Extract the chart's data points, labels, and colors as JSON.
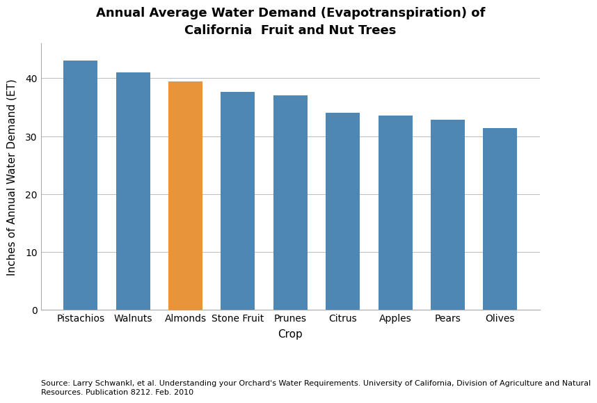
{
  "title": "Annual Average Water Demand (Evapotranspiration) of\nCalifornia  Fruit and Nut Trees",
  "xlabel": "Crop",
  "ylabel": "Inches of Annual Water Demand (ET)",
  "categories": [
    "Pistachios",
    "Walnuts",
    "Almonds",
    "Stone Fruit",
    "Prunes",
    "Citrus",
    "Apples",
    "Pears",
    "Olives"
  ],
  "values": [
    43.0,
    41.0,
    39.5,
    37.7,
    37.0,
    34.0,
    33.5,
    32.8,
    31.4
  ],
  "bar_colors": [
    "#4e86b4",
    "#4e86b4",
    "#e8943a",
    "#4e86b4",
    "#4e86b4",
    "#4e86b4",
    "#4e86b4",
    "#4e86b4",
    "#4e86b4"
  ],
  "ylim": [
    0,
    46
  ],
  "yticks": [
    0,
    10,
    20,
    30,
    40
  ],
  "background_color": "#ffffff",
  "grid_color": "#c0c0c0",
  "source_text": "Source: Larry Schwankl, et al. Understanding your Orchard's Water Requirements. University of California, Division of Agriculture and Natural\nResources. Publication 8212. Feb. 2010",
  "title_fontsize": 13,
  "label_fontsize": 11,
  "tick_fontsize": 10,
  "source_fontsize": 8
}
